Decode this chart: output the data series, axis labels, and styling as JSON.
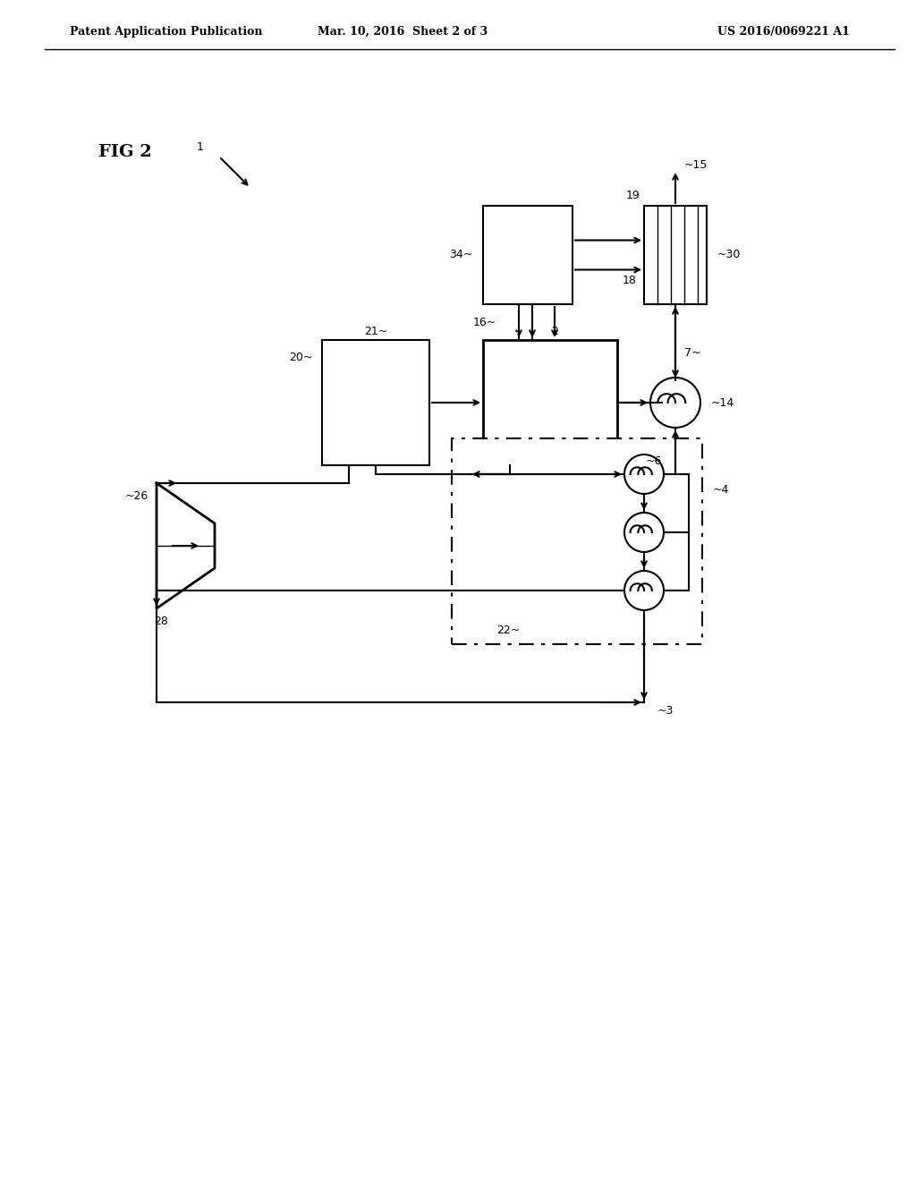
{
  "title_left": "Patent Application Publication",
  "title_mid": "Mar. 10, 2016  Sheet 2 of 3",
  "title_right": "US 2016/0069221 A1",
  "fig_label": "FIG 2",
  "label_1": "1",
  "label_2": "2",
  "label_3": "3",
  "label_4": "4",
  "label_6": "6",
  "label_7": "7",
  "label_14": "14",
  "label_15": "15",
  "label_16": "16",
  "label_18": "18",
  "label_19": "19",
  "label_20": "20",
  "label_21": "21",
  "label_22": "22",
  "label_26": "26",
  "label_28": "28",
  "label_30": "30",
  "label_34": "34",
  "bg_color": "#ffffff",
  "line_color": "#000000"
}
